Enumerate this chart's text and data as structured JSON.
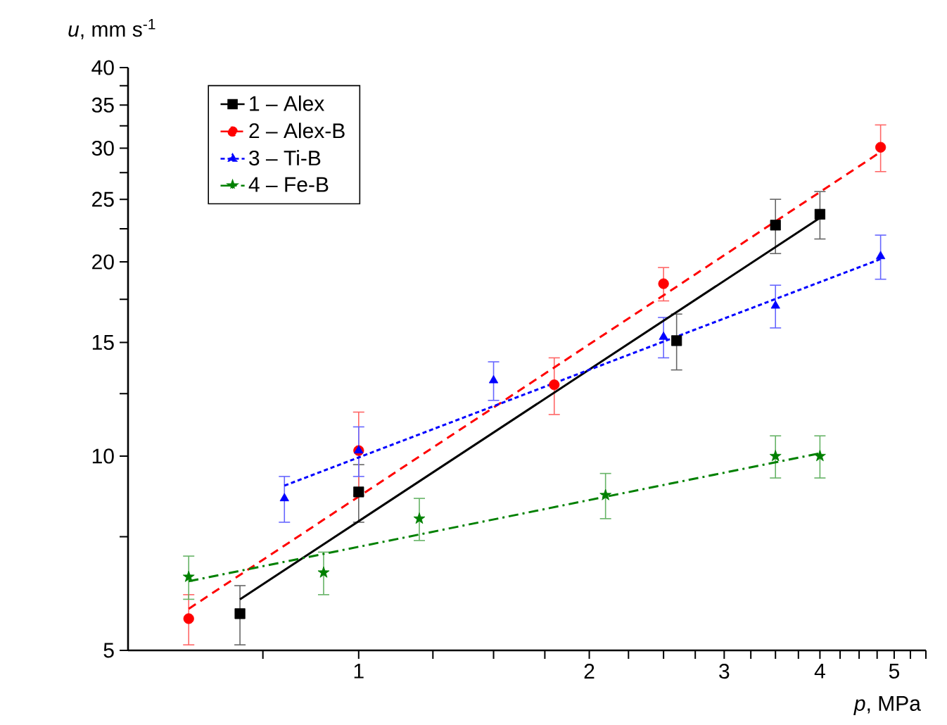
{
  "chart_data": {
    "type": "scatter",
    "xlabel": "*p*, MPa",
    "ylabel": "*u*, mm s$^{-1}$",
    "log": "xy",
    "xlim": [
      0.5,
      5.5
    ],
    "ylim": [
      5,
      40
    ],
    "xticks": [
      {
        "value": 0.75,
        "label": null
      },
      1,
      {
        "value": 1.25,
        "label": null
      },
      {
        "value": 1.5,
        "label": null
      },
      {
        "value": 1.75,
        "label": null
      },
      2,
      {
        "value": 2.25,
        "label": null
      },
      {
        "value": 2.5,
        "label": null
      },
      {
        "value": 2.75,
        "label": null
      },
      3,
      {
        "value": 3.25,
        "label": null
      },
      {
        "value": 3.5,
        "label": null
      },
      {
        "value": 3.75,
        "label": null
      },
      4,
      {
        "value": 4.25,
        "label": null
      },
      {
        "value": 4.5,
        "label": null
      },
      {
        "value": 4.75,
        "label": null
      },
      5,
      {
        "value": 5.25,
        "label": null
      },
      {
        "value": 5.5,
        "label": null
      }
    ],
    "yticks": [
      5,
      {
        "value": 7.5,
        "label": null
      },
      10,
      {
        "value": 12.5,
        "label": null
      },
      15,
      {
        "value": 17.5,
        "label": null
      },
      20,
      {
        "value": 22.5,
        "label": null
      },
      25,
      {
        "value": 27.5,
        "label": null
      },
      30,
      {
        "value": 32.5,
        "label": null
      },
      35,
      {
        "value": 37.5,
        "label": null
      },
      40
    ],
    "legend": "top left",
    "grid": false,
    "series": [
      {
        "name": "1 – Alex",
        "marker": "square",
        "color": "#000000",
        "x": [
          0.7,
          1,
          2.6,
          3.5,
          4
        ],
        "values": [
          5.7,
          8.8,
          15.1,
          22.8,
          23.7
        ],
        "errors": [
          0.6,
          0.9,
          1.5,
          2.2,
          2.0
        ]
      },
      {
        "name": "2 – Alex-B",
        "marker": "circle",
        "color": "#ff0000",
        "x": [
          0.6,
          1,
          1.8,
          2.5,
          4.8
        ],
        "values": [
          5.6,
          10.2,
          12.9,
          18.5,
          30.1
        ],
        "errors": [
          0.5,
          1.5,
          1.3,
          1.1,
          2.5
        ]
      },
      {
        "name": "3 – Ti-B",
        "marker": "triangle",
        "color": "#0000ff",
        "x": [
          0.8,
          1,
          1.5,
          2.5,
          3.5,
          4.8
        ],
        "values": [
          8.6,
          10.2,
          13.1,
          15.3,
          17.1,
          20.4
        ],
        "errors": [
          0.7,
          0.9,
          0.9,
          1.1,
          1.3,
          1.6
        ]
      },
      {
        "name": "4 – Fe-B",
        "marker": "star",
        "color": "#008000",
        "x": [
          0.6,
          0.9,
          1.2,
          2.1,
          3.5,
          4
        ],
        "values": [
          6.5,
          6.6,
          8.0,
          8.7,
          10.0,
          10.0
        ],
        "errors": [
          0.5,
          0.5,
          0.6,
          0.7,
          0.75,
          0.75
        ]
      },
      {
        "type": "line",
        "line_style": "solid",
        "color": "#000000",
        "x": [
          0.7,
          4
        ],
        "values": [
          6.0,
          23.4
        ]
      },
      {
        "type": "line",
        "line_style": "dashed",
        "color": "#ff0000",
        "x": [
          0.6,
          4.8
        ],
        "values": [
          5.8,
          29.6
        ]
      },
      {
        "type": "line",
        "line_style": "densely dashed",
        "color": "#0000ff",
        "x": [
          0.8,
          4.8
        ],
        "values": [
          9.0,
          20.2
        ]
      },
      {
        "type": "line",
        "line_style": "dashdot",
        "color": "#008000",
        "x": [
          0.6,
          4
        ],
        "values": [
          6.4,
          10.1
        ]
      }
    ]
  }
}
